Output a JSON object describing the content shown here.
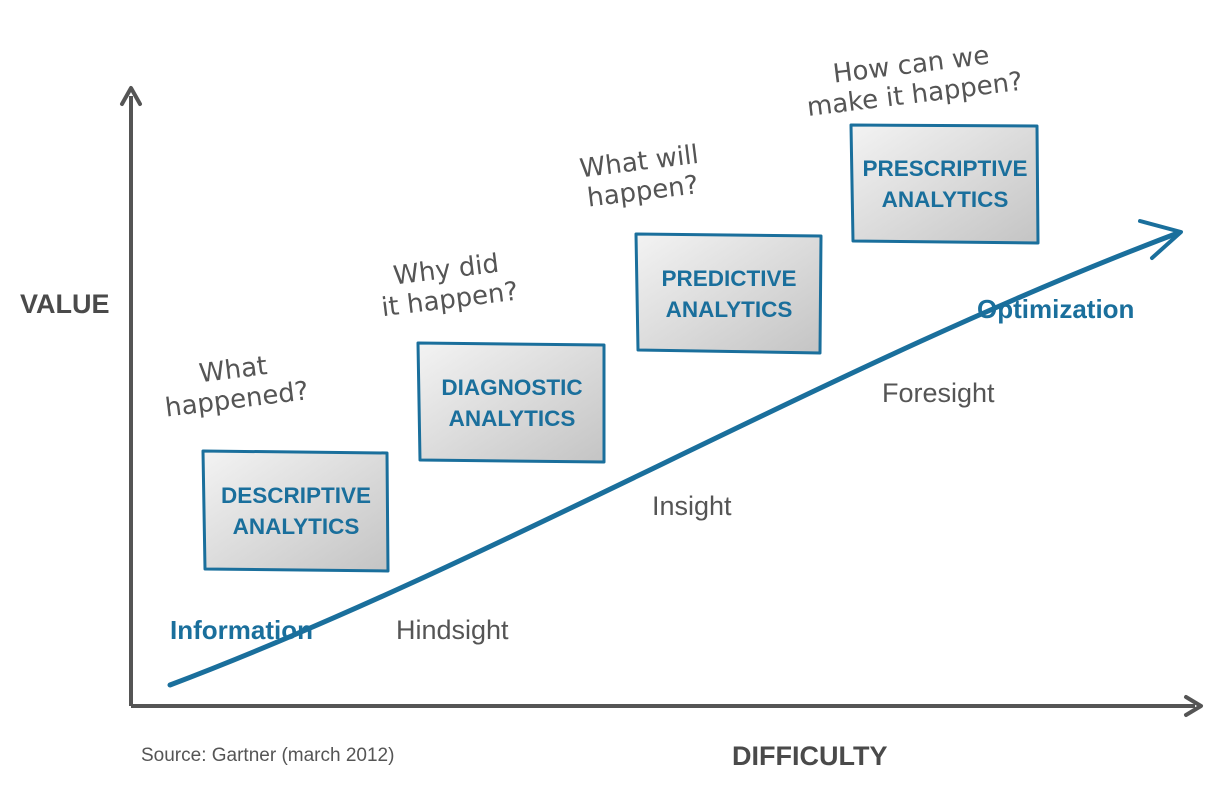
{
  "axes": {
    "y_label": "VALUE",
    "x_label": "DIFFICULTY"
  },
  "trend": {
    "start_label": "Information",
    "end_label": "Optimization"
  },
  "stages": [
    {
      "box_title": "DESCRIPTIVE\nANALYTICS",
      "question": "What\nhappened?",
      "insight": "Hindsight"
    },
    {
      "box_title": "DIAGNOSTIC\nANALYTICS",
      "question": "Why did\nit happen?",
      "insight": ""
    },
    {
      "box_title": "PREDICTIVE\nANALYTICS",
      "question": "What will\nhappen?",
      "insight": "Insight"
    },
    {
      "box_title": "PRESCRIPTIVE\nANALYTICS",
      "question": "How can we\nmake it happen?",
      "insight": "Foresight"
    }
  ],
  "source": "Source: Gartner (march 2012)",
  "colors": {
    "accent_blue": "#1a6f9c",
    "axis_gray": "#555555",
    "text_gray": "#4a4a4a",
    "box_fill_light": "#f3f3f3",
    "box_fill_dark": "#c4c4c4",
    "box_border": "#1a6f9c"
  }
}
